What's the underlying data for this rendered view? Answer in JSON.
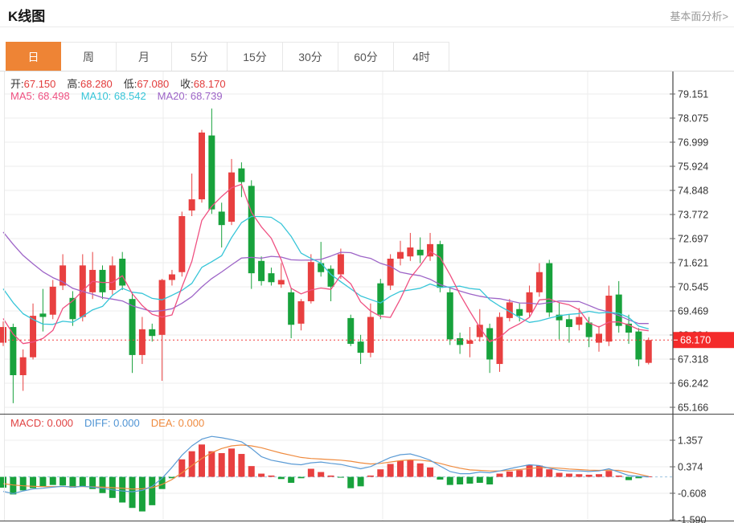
{
  "page": {
    "title": "K线图",
    "link_label": "基本面分析>"
  },
  "tabs": {
    "items": [
      {
        "id": "day",
        "label": "日",
        "active": true
      },
      {
        "id": "week",
        "label": "周",
        "active": false
      },
      {
        "id": "month",
        "label": "月",
        "active": false
      },
      {
        "id": "5min",
        "label": "5分",
        "active": false
      },
      {
        "id": "15min",
        "label": "15分",
        "active": false
      },
      {
        "id": "30min",
        "label": "30分",
        "active": false
      },
      {
        "id": "60min",
        "label": "60分",
        "active": false
      },
      {
        "id": "4hour",
        "label": "4时",
        "active": false
      }
    ]
  },
  "ohlc_legend": {
    "label_color": "#333333",
    "value_color": "#e23b3b",
    "items": [
      {
        "id": "open",
        "label": "开:",
        "value": "67.150"
      },
      {
        "id": "high",
        "label": "高:",
        "value": "68.280"
      },
      {
        "id": "low",
        "label": "低:",
        "value": "67.080"
      },
      {
        "id": "close",
        "label": "收:",
        "value": "68.170"
      }
    ]
  },
  "ma_legend": {
    "items": [
      {
        "id": "ma5",
        "label": "MA5:",
        "value": "68.498",
        "color": "#ef5081"
      },
      {
        "id": "ma10",
        "label": "MA10:",
        "value": "68.542",
        "color": "#36c5d8"
      },
      {
        "id": "ma20",
        "label": "MA20:",
        "value": "68.739",
        "color": "#9d64c7"
      }
    ]
  },
  "macd_legend": {
    "items": [
      {
        "id": "macd",
        "label": "MACD:",
        "value": "0.000",
        "color": "#e04343"
      },
      {
        "id": "diff",
        "label": "DIFF:",
        "value": "0.000",
        "color": "#4f94d4"
      },
      {
        "id": "dea",
        "label": "DEA:",
        "value": "0.000",
        "color": "#ef8b3f"
      }
    ]
  },
  "chart_data": {
    "type": "candlestick",
    "title": "K线图",
    "panels": [
      "price",
      "macd"
    ],
    "legend_position": "top-left",
    "grid": true,
    "price_ticks": [
      79.151,
      78.075,
      76.999,
      75.924,
      74.848,
      73.772,
      72.697,
      71.621,
      70.545,
      69.469,
      68.394,
      67.318,
      66.242,
      65.166
    ],
    "current_price": "68.170",
    "current_price_value": 68.17,
    "ohlc_today": {
      "open": 67.15,
      "high": 68.28,
      "low": 67.08,
      "close": 68.17
    },
    "ma_values": {
      "ma5": 68.498,
      "ma10": 68.542,
      "ma20": 68.739
    },
    "candles": {
      "open": [
        68.05,
        68.75,
        66.6,
        67.4,
        69.35,
        69.3,
        70.6,
        70.05,
        69.2,
        70.3,
        71.3,
        70.4,
        71.8,
        70.0,
        67.5,
        68.65,
        68.4,
        70.85,
        71.2,
        73.95,
        74.45,
        77.3,
        73.9,
        73.45,
        75.83,
        75.05,
        71.7,
        71.15,
        70.65,
        70.3,
        68.9,
        69.9,
        71.6,
        71.35,
        71.1,
        69.15,
        68.1,
        67.6,
        70.7,
        70.6,
        71.8,
        71.9,
        72.2,
        71.9,
        72.45,
        70.3,
        68.25,
        68.0,
        68.3,
        68.7,
        67.1,
        69.15,
        69.55,
        69.4,
        70.3,
        71.6,
        69.3,
        69.1,
        68.85,
        68.95,
        68.05,
        68.1,
        70.2,
        68.9,
        68.55,
        67.15
      ],
      "high": [
        69.0,
        68.9,
        67.75,
        69.8,
        70.45,
        70.85,
        72.0,
        70.35,
        72.0,
        72.1,
        71.5,
        71.9,
        72.1,
        70.3,
        69.2,
        68.9,
        70.9,
        71.3,
        73.9,
        75.6,
        77.55,
        78.5,
        74.3,
        76.25,
        76.1,
        75.3,
        71.9,
        71.4,
        71.6,
        70.5,
        70.0,
        72.0,
        72.55,
        71.5,
        72.25,
        69.3,
        68.4,
        69.8,
        70.9,
        72.0,
        72.6,
        72.95,
        72.75,
        72.95,
        72.6,
        70.5,
        68.5,
        68.75,
        69.55,
        68.9,
        69.4,
        70.0,
        69.8,
        70.6,
        71.6,
        71.75,
        69.85,
        69.3,
        69.6,
        69.2,
        68.8,
        70.6,
        70.8,
        69.3,
        68.7,
        68.28
      ],
      "low": [
        67.9,
        65.35,
        65.9,
        67.3,
        68.55,
        69.1,
        70.4,
        68.8,
        69.0,
        70.0,
        70.0,
        70.2,
        70.4,
        66.7,
        67.1,
        68.1,
        66.35,
        70.6,
        71.0,
        73.7,
        74.3,
        73.8,
        72.3,
        73.3,
        74.55,
        70.45,
        70.6,
        70.6,
        70.5,
        68.25,
        68.6,
        69.8,
        71.0,
        69.9,
        70.9,
        67.9,
        67.1,
        67.4,
        69.1,
        70.4,
        71.5,
        71.7,
        71.6,
        71.7,
        70.3,
        67.95,
        67.55,
        67.4,
        68.1,
        66.7,
        66.75,
        69.0,
        69.0,
        69.2,
        70.1,
        69.2,
        68.2,
        68.05,
        68.6,
        67.85,
        67.65,
        67.9,
        68.5,
        68.0,
        67.0,
        67.08
      ],
      "close": [
        68.75,
        66.6,
        67.4,
        69.25,
        69.2,
        70.55,
        71.5,
        69.1,
        71.5,
        71.3,
        70.3,
        71.5,
        70.6,
        67.5,
        68.65,
        68.35,
        70.85,
        71.1,
        73.7,
        74.45,
        77.43,
        74.0,
        73.3,
        75.65,
        75.22,
        71.15,
        70.8,
        70.75,
        70.85,
        68.85,
        69.9,
        71.65,
        71.2,
        70.55,
        72.0,
        68.0,
        67.6,
        69.2,
        69.3,
        71.8,
        72.1,
        72.3,
        71.95,
        72.45,
        70.5,
        68.2,
        67.95,
        68.15,
        68.85,
        67.3,
        69.2,
        69.85,
        69.25,
        70.3,
        71.2,
        69.4,
        69.05,
        68.75,
        69.2,
        68.3,
        68.45,
        70.15,
        68.8,
        68.5,
        67.3,
        68.17
      ]
    },
    "prehistory_closes": [
      77.6,
      77.2,
      76.8,
      76.3,
      75.8,
      75.3,
      74.8,
      74.3,
      73.8,
      73.3,
      72.8,
      72.3,
      71.8,
      71.3,
      70.7,
      70.1,
      69.5,
      68.9,
      68.4
    ],
    "ma_lines": [
      {
        "period": 5,
        "color": "#ef5081"
      },
      {
        "period": 10,
        "color": "#36c5d8"
      },
      {
        "period": 20,
        "color": "#9d64c7"
      }
    ],
    "macd": {
      "ticks": [
        1.357,
        0.374,
        -0.608,
        -1.59
      ],
      "hist": [
        -0.4,
        -0.65,
        -0.5,
        -0.42,
        -0.35,
        -0.3,
        -0.32,
        -0.4,
        -0.35,
        -0.45,
        -0.6,
        -0.78,
        -0.95,
        -1.15,
        -1.28,
        -1.05,
        -0.45,
        -0.05,
        0.65,
        0.95,
        1.2,
        0.95,
        0.88,
        1.05,
        0.85,
        0.4,
        0.12,
        0.05,
        -0.08,
        -0.22,
        -0.05,
        0.3,
        0.18,
        0.05,
        -0.02,
        -0.42,
        -0.35,
        0.05,
        0.28,
        0.48,
        0.6,
        0.62,
        0.5,
        0.35,
        -0.1,
        -0.3,
        -0.28,
        -0.25,
        -0.22,
        -0.28,
        0.12,
        0.2,
        0.25,
        0.45,
        0.42,
        0.28,
        0.15,
        0.12,
        0.1,
        0.08,
        0.1,
        0.22,
        0.05,
        -0.12,
        -0.05,
        0.02
      ],
      "diff": [
        -0.54,
        -0.62,
        -0.52,
        -0.45,
        -0.42,
        -0.38,
        -0.35,
        -0.38,
        -0.35,
        -0.38,
        -0.42,
        -0.48,
        -0.52,
        -0.55,
        -0.5,
        -0.35,
        -0.05,
        0.35,
        0.8,
        1.15,
        1.4,
        1.5,
        1.45,
        1.38,
        1.3,
        1.05,
        0.75,
        0.62,
        0.55,
        0.48,
        0.45,
        0.52,
        0.55,
        0.5,
        0.46,
        0.38,
        0.3,
        0.38,
        0.55,
        0.72,
        0.82,
        0.85,
        0.75,
        0.62,
        0.4,
        0.2,
        0.12,
        0.12,
        0.18,
        0.15,
        0.22,
        0.3,
        0.38,
        0.45,
        0.42,
        0.32,
        0.25,
        0.22,
        0.22,
        0.2,
        0.22,
        0.3,
        0.18,
        0.05,
        0.02,
        0.0
      ],
      "dea": [
        -0.25,
        -0.3,
        -0.33,
        -0.35,
        -0.36,
        -0.36,
        -0.36,
        -0.36,
        -0.36,
        -0.37,
        -0.38,
        -0.4,
        -0.42,
        -0.45,
        -0.44,
        -0.4,
        -0.28,
        -0.1,
        0.15,
        0.42,
        0.68,
        0.9,
        1.05,
        1.15,
        1.18,
        1.15,
        1.08,
        0.98,
        0.88,
        0.8,
        0.72,
        0.68,
        0.66,
        0.64,
        0.62,
        0.58,
        0.52,
        0.48,
        0.5,
        0.55,
        0.6,
        0.63,
        0.62,
        0.58,
        0.5,
        0.4,
        0.32,
        0.26,
        0.24,
        0.22,
        0.22,
        0.24,
        0.27,
        0.31,
        0.34,
        0.34,
        0.32,
        0.29,
        0.27,
        0.25,
        0.24,
        0.25,
        0.24,
        0.18,
        0.1,
        0.02
      ]
    },
    "colors": {
      "up": "#e84040",
      "down": "#18a23c",
      "diff_line": "#5b9bd5",
      "dea_line": "#ef8b3f",
      "badge_bg": "#f42b2b",
      "badge_text": "#ffffff",
      "dotted_price_line": "#f23b3b",
      "zero_line": "#9cc2e0",
      "grid": "#ececec",
      "axis": "#444444",
      "tick_text": "#333333",
      "tab_active_bg": "#ee8435"
    }
  }
}
